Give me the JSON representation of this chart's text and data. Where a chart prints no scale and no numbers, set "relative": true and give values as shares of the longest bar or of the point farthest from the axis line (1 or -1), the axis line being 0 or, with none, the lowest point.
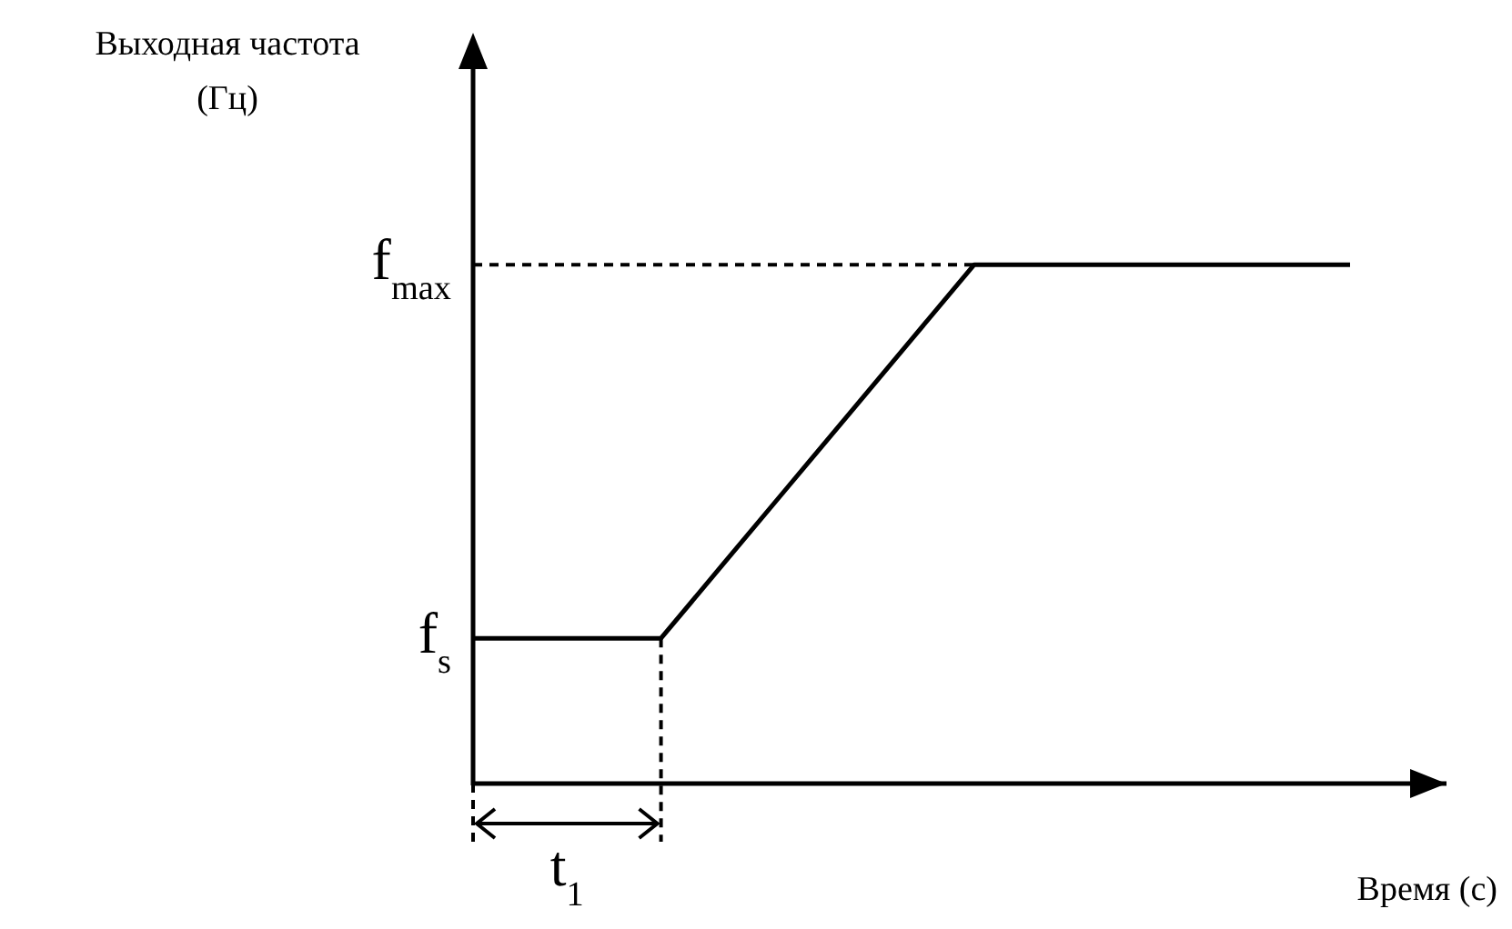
{
  "chart_data": {
    "type": "line",
    "relative": true,
    "ylabel": "Выходная частота (Гц)",
    "xlabel": "Время (с)",
    "annotations": [
      "f$_{s}$",
      "t$_{1}$"
    ],
    "categories": [
      null,
      null,
      null,
      null,
      null,
      null,
      null,
      null,
      null,
      null,
      null,
      null,
      null,
      null,
      null
    ],
    "series": [
      {
        "color": "#000000",
        "values": [
          0.28,
          0.28,
          0.28,
          0.28,
          0.424,
          0.568,
          0.712,
          0.856,
          1,
          1,
          1,
          1,
          1,
          1,
          1
        ]
      }
    ],
    "ref_lines": [
      {
        "axis": "y",
        "value": 1,
        "label": "f$_{max}$",
        "line_style": "dashed",
        "color": "#000000"
      }
    ],
    "marker": "none"
  }
}
